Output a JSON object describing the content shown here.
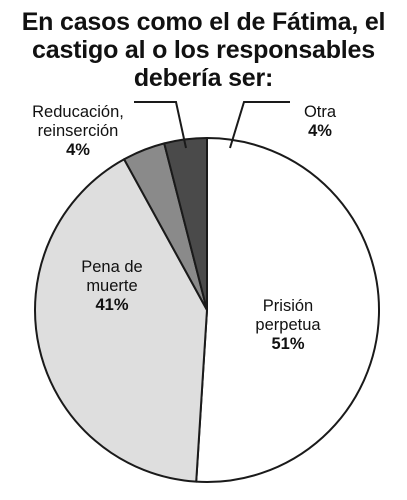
{
  "chart_data": {
    "type": "pie",
    "title_lines": [
      "En casos como el de Fátima, el",
      "castigo al o los responsables",
      "debería ser:"
    ],
    "slices": [
      {
        "label_lines": [
          "Prisión",
          "perpetua"
        ],
        "value": 51,
        "value_label": "51%",
        "color": "#ffffff"
      },
      {
        "label_lines": [
          "Pena de",
          "muerte"
        ],
        "value": 41,
        "value_label": "41%",
        "color": "#dedede"
      },
      {
        "label_lines": [
          "Reducación,",
          "reinserción"
        ],
        "value": 4,
        "value_label": "4%",
        "color": "#8a8a8a"
      },
      {
        "label_lines": [
          "Otra"
        ],
        "value": 4,
        "value_label": "4%",
        "color": "#4a4a4a"
      }
    ],
    "stroke_color": "#1a1a1a",
    "legend": "none"
  }
}
